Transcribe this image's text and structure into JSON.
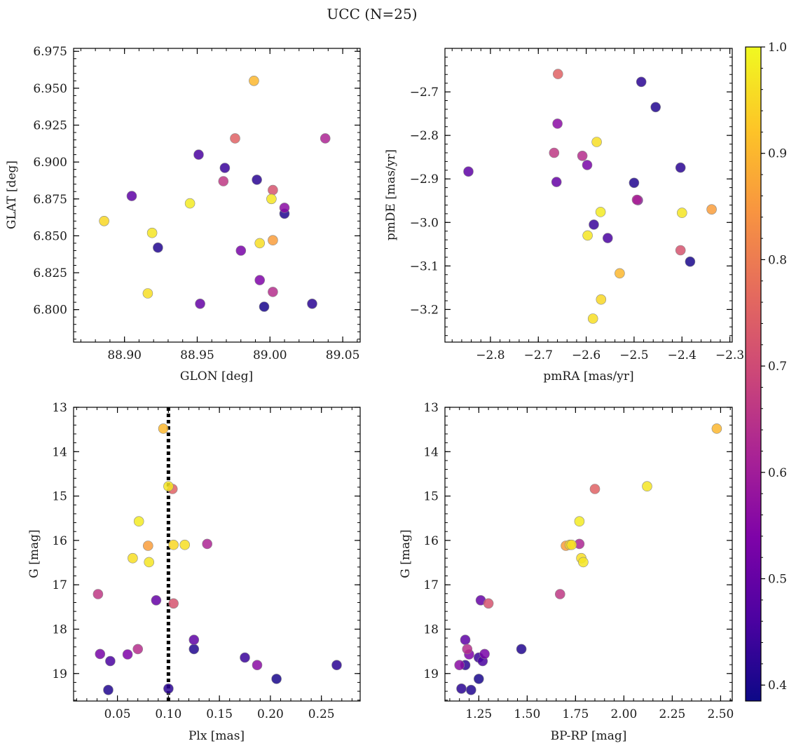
{
  "chart_data": {
    "type": "scatter",
    "title": "UCC (N=25)",
    "colorbar": {
      "range": [
        0.385,
        1.0
      ],
      "ticks": [
        0.4,
        0.5,
        0.6,
        0.7,
        0.8,
        0.9,
        1.0
      ],
      "tick_labels": [
        "0.4",
        "0.5",
        "0.6",
        "0.7",
        "0.8",
        "0.9",
        "1.0"
      ],
      "colormap": "plasma"
    },
    "vline": {
      "panel": 2,
      "x": 0.1,
      "style": "dotted",
      "color": "#000000"
    },
    "panels": [
      {
        "xlabel": "GLON [deg]",
        "ylabel": "GLAT [deg]",
        "xlim": [
          88.865,
          89.062
        ],
        "ylim": [
          6.778,
          6.977
        ],
        "yinvert": false,
        "xticks": [
          88.9,
          88.95,
          89.0,
          89.05
        ],
        "xtick_labels": [
          "88.90",
          "88.95",
          "89.00",
          "89.05"
        ],
        "yticks": [
          6.8,
          6.825,
          6.85,
          6.875,
          6.9,
          6.925,
          6.95,
          6.975
        ],
        "ytick_labels": [
          "6.800",
          "6.825",
          "6.850",
          "6.875",
          "6.900",
          "6.925",
          "6.950",
          "6.975"
        ]
      },
      {
        "xlabel": "pmRA [mas/yr]",
        "ylabel": "pmDE [mas/yr]",
        "xlim": [
          -2.895,
          -2.295
        ],
        "ylim": [
          -3.275,
          -2.6
        ],
        "yinvert": false,
        "xticks": [
          -2.8,
          -2.7,
          -2.6,
          -2.5,
          -2.4,
          -2.3
        ],
        "xtick_labels": [
          "−2.8",
          "−2.7",
          "−2.6",
          "−2.5",
          "−2.4",
          "−2.3"
        ],
        "yticks": [
          -3.2,
          -3.1,
          -3.0,
          -2.9,
          -2.8,
          -2.7
        ],
        "ytick_labels": [
          "−3.2",
          "−3.1",
          "−3.0",
          "−2.9",
          "−2.8",
          "−2.7"
        ]
      },
      {
        "xlabel": "Plx [mas]",
        "ylabel": "G [mag]",
        "xlim": [
          0.007,
          0.288
        ],
        "ylim": [
          13.0,
          19.62
        ],
        "yinvert": true,
        "xticks": [
          0.05,
          0.1,
          0.15,
          0.2,
          0.25
        ],
        "xtick_labels": [
          "0.05",
          "0.10",
          "0.15",
          "0.20",
          "0.25"
        ],
        "yticks": [
          13,
          14,
          15,
          16,
          17,
          18,
          19
        ],
        "ytick_labels": [
          "13",
          "14",
          "15",
          "16",
          "17",
          "18",
          "19"
        ]
      },
      {
        "xlabel": "BP-RP [mag]",
        "ylabel": "G [mag]",
        "xlim": [
          1.075,
          2.56
        ],
        "ylim": [
          13.0,
          19.62
        ],
        "yinvert": true,
        "xticks": [
          1.25,
          1.5,
          1.75,
          2.0,
          2.25,
          2.5
        ],
        "xtick_labels": [
          "1.25",
          "1.50",
          "1.75",
          "2.00",
          "2.25",
          "2.50"
        ],
        "yticks": [
          13,
          14,
          15,
          16,
          17,
          18,
          19
        ],
        "ytick_labels": [
          "13",
          "14",
          "15",
          "16",
          "17",
          "18",
          "19"
        ]
      }
    ],
    "stars": [
      {
        "glon": 88.989,
        "glat": 6.955,
        "pmra": -2.53,
        "pmde": -3.117,
        "plx": 0.095,
        "g": 13.48,
        "bprp": 2.48,
        "prob": 0.9
      },
      {
        "glon": 88.919,
        "glat": 6.852,
        "pmra": -2.4,
        "pmde": -2.978,
        "plx": 0.1,
        "g": 14.78,
        "bprp": 2.12,
        "prob": 0.97
      },
      {
        "glon": 88.976,
        "glat": 6.916,
        "pmra": -2.659,
        "pmde": -2.659,
        "plx": 0.104,
        "g": 14.84,
        "bprp": 1.85,
        "prob": 0.75
      },
      {
        "glon": 88.945,
        "glat": 6.872,
        "pmra": -2.57,
        "pmde": -2.976,
        "plx": 0.071,
        "g": 15.57,
        "bprp": 1.77,
        "prob": 0.98
      },
      {
        "glon": 89.002,
        "glat": 6.847,
        "pmra": -2.338,
        "pmde": -2.97,
        "plx": 0.08,
        "g": 16.12,
        "bprp": 1.7,
        "prob": 0.86
      },
      {
        "glon": 88.886,
        "glat": 6.86,
        "pmra": -2.569,
        "pmde": -3.177,
        "plx": 0.105,
        "g": 16.1,
        "bprp": 1.72,
        "prob": 0.95
      },
      {
        "glon": 88.916,
        "glat": 6.811,
        "pmra": -2.578,
        "pmde": -2.815,
        "plx": 0.116,
        "g": 16.1,
        "bprp": 1.73,
        "prob": 0.96
      },
      {
        "glon": 89.038,
        "glat": 6.916,
        "pmra": -2.494,
        "pmde": -2.948,
        "plx": 0.138,
        "g": 16.08,
        "bprp": 1.77,
        "prob": 0.62
      },
      {
        "glon": 88.993,
        "glat": 6.845,
        "pmra": -2.586,
        "pmde": -3.221,
        "plx": 0.065,
        "g": 16.4,
        "bprp": 1.78,
        "prob": 0.96
      },
      {
        "glon": 89.001,
        "glat": 6.875,
        "pmra": -2.597,
        "pmde": -3.03,
        "plx": 0.081,
        "g": 16.49,
        "bprp": 1.79,
        "prob": 0.97
      },
      {
        "glon": 88.968,
        "glat": 6.887,
        "pmra": -2.667,
        "pmde": -2.84,
        "plx": 0.031,
        "g": 17.21,
        "bprp": 1.67,
        "prob": 0.66
      },
      {
        "glon": 88.952,
        "glat": 6.804,
        "pmra": -2.662,
        "pmde": -2.907,
        "plx": 0.088,
        "g": 17.35,
        "bprp": 1.26,
        "prob": 0.5
      },
      {
        "glon": 89.002,
        "glat": 6.881,
        "pmra": -2.403,
        "pmde": -3.064,
        "plx": 0.105,
        "g": 17.42,
        "bprp": 1.3,
        "prob": 0.72
      },
      {
        "glon": 88.905,
        "glat": 6.877,
        "pmra": -2.846,
        "pmde": -2.883,
        "plx": 0.125,
        "g": 18.24,
        "bprp": 1.18,
        "prob": 0.49
      },
      {
        "glon": 88.923,
        "glat": 6.842,
        "pmra": -2.5,
        "pmde": -2.909,
        "plx": 0.125,
        "g": 18.45,
        "bprp": 1.47,
        "prob": 0.41
      },
      {
        "glon": 89.002,
        "glat": 6.812,
        "pmra": -2.608,
        "pmde": -2.847,
        "plx": 0.07,
        "g": 18.45,
        "bprp": 1.19,
        "prob": 0.64
      },
      {
        "glon": 88.98,
        "glat": 6.84,
        "pmra": -2.598,
        "pmde": -2.868,
        "plx": 0.033,
        "g": 18.56,
        "bprp": 1.28,
        "prob": 0.53
      },
      {
        "glon": 88.993,
        "glat": 6.82,
        "pmra": -2.492,
        "pmde": -2.949,
        "plx": 0.06,
        "g": 18.57,
        "bprp": 1.2,
        "prob": 0.54
      },
      {
        "glon": 88.969,
        "glat": 6.896,
        "pmra": -2.584,
        "pmde": -3.005,
        "plx": 0.175,
        "g": 18.64,
        "bprp": 1.25,
        "prob": 0.44
      },
      {
        "glon": 88.951,
        "glat": 6.905,
        "pmra": -2.555,
        "pmde": -3.036,
        "plx": 0.043,
        "g": 18.72,
        "bprp": 1.27,
        "prob": 0.46
      },
      {
        "glon": 89.01,
        "glat": 6.869,
        "pmra": -2.66,
        "pmde": -2.773,
        "plx": 0.187,
        "g": 18.81,
        "bprp": 1.15,
        "prob": 0.56
      },
      {
        "glon": 88.991,
        "glat": 6.888,
        "pmra": -2.403,
        "pmde": -2.874,
        "plx": 0.265,
        "g": 18.81,
        "bprp": 1.18,
        "prob": 0.42
      },
      {
        "glon": 88.996,
        "glat": 6.802,
        "pmra": -2.383,
        "pmde": -3.09,
        "plx": 0.206,
        "g": 19.12,
        "bprp": 1.25,
        "prob": 0.4
      },
      {
        "glon": 89.029,
        "glat": 6.804,
        "pmra": -2.485,
        "pmde": -2.677,
        "plx": 0.1,
        "g": 19.34,
        "bprp": 1.16,
        "prob": 0.42
      },
      {
        "glon": 89.01,
        "glat": 6.865,
        "pmra": -2.455,
        "pmde": -2.735,
        "plx": 0.041,
        "g": 19.37,
        "bprp": 1.21,
        "prob": 0.41
      }
    ]
  }
}
